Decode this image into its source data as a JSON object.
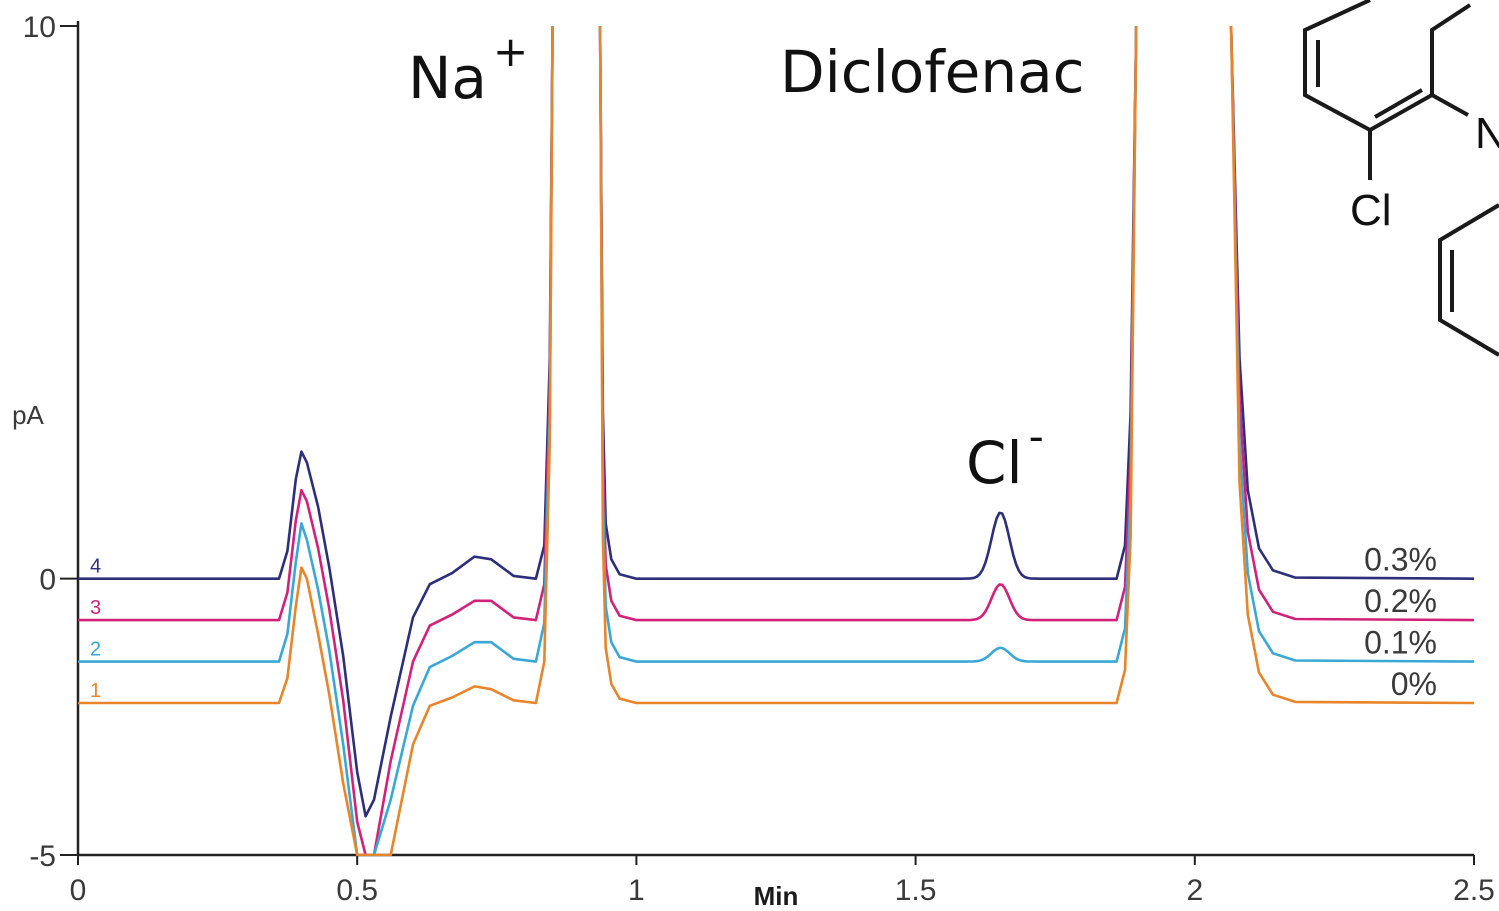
{
  "chart_data": {
    "type": "line",
    "xlabel": "Min",
    "ylabel": "pA",
    "xlim": [
      0,
      2.5
    ],
    "ylim": [
      -5,
      10
    ],
    "x_ticks": [
      "0",
      "0.5",
      "1",
      "1.5",
      "2",
      "2.5"
    ],
    "y_ticks": [
      "10",
      "0",
      "-5"
    ],
    "peak_labels": [
      {
        "text": "Na",
        "sup": "+",
        "x": 0.7
      },
      {
        "text": "Diclofenac",
        "sup": "",
        "x": 1.55
      },
      {
        "text": "Cl",
        "sup": "-",
        "x": 1.65
      }
    ],
    "molecule_fragment": {
      "atom_labels": [
        "Cl",
        "N"
      ]
    },
    "series": [
      {
        "name": "4",
        "label": "0.3%",
        "color": "#2e2f7a",
        "baseline": 0.0,
        "cl_peak": 1.2,
        "points": [
          [
            0,
            0
          ],
          [
            0.36,
            0
          ],
          [
            0.375,
            0.5
          ],
          [
            0.39,
            1.8
          ],
          [
            0.4,
            2.3
          ],
          [
            0.41,
            2.1
          ],
          [
            0.43,
            1.3
          ],
          [
            0.45,
            0.2
          ],
          [
            0.475,
            -1.4
          ],
          [
            0.5,
            -3.5
          ],
          [
            0.515,
            -4.3
          ],
          [
            0.53,
            -4.0
          ],
          [
            0.56,
            -2.5
          ],
          [
            0.6,
            -0.7
          ],
          [
            0.63,
            -0.1
          ],
          [
            0.67,
            0.1
          ],
          [
            0.71,
            0.4
          ],
          [
            0.74,
            0.35
          ],
          [
            0.78,
            0.05
          ],
          [
            0.82,
            0
          ],
          [
            0.835,
            0.6
          ],
          [
            0.845,
            4
          ],
          [
            0.85,
            10
          ]
        ]
      },
      {
        "name": "3",
        "label": "0.2%",
        "color": "#d1227a",
        "baseline": -0.75,
        "cl_peak": 0.65,
        "points": [
          [
            0,
            -0.75
          ],
          [
            0.36,
            -0.75
          ],
          [
            0.375,
            -0.25
          ],
          [
            0.39,
            1.05
          ],
          [
            0.4,
            1.6
          ],
          [
            0.41,
            1.4
          ],
          [
            0.43,
            0.55
          ],
          [
            0.45,
            -0.55
          ],
          [
            0.475,
            -2.2
          ],
          [
            0.5,
            -4.4
          ],
          [
            0.515,
            -5
          ],
          [
            0.53,
            -5
          ],
          [
            0.56,
            -3.3
          ],
          [
            0.6,
            -1.5
          ],
          [
            0.63,
            -0.85
          ],
          [
            0.67,
            -0.65
          ],
          [
            0.71,
            -0.4
          ],
          [
            0.74,
            -0.4
          ],
          [
            0.78,
            -0.7
          ],
          [
            0.82,
            -0.75
          ],
          [
            0.835,
            -0.1
          ],
          [
            0.845,
            3.5
          ],
          [
            0.85,
            10
          ]
        ]
      },
      {
        "name": "2",
        "label": "0.1%",
        "color": "#3aa8d4",
        "baseline": -1.5,
        "cl_peak": 0.25,
        "points": [
          [
            0,
            -1.5
          ],
          [
            0.36,
            -1.5
          ],
          [
            0.375,
            -1.0
          ],
          [
            0.39,
            0.3
          ],
          [
            0.4,
            1.0
          ],
          [
            0.41,
            0.7
          ],
          [
            0.43,
            -0.2
          ],
          [
            0.45,
            -1.3
          ],
          [
            0.475,
            -3.0
          ],
          [
            0.5,
            -5
          ],
          [
            0.53,
            -5
          ],
          [
            0.56,
            -4.0
          ],
          [
            0.6,
            -2.3
          ],
          [
            0.63,
            -1.6
          ],
          [
            0.67,
            -1.4
          ],
          [
            0.71,
            -1.15
          ],
          [
            0.74,
            -1.15
          ],
          [
            0.78,
            -1.45
          ],
          [
            0.82,
            -1.5
          ],
          [
            0.835,
            -0.8
          ],
          [
            0.845,
            3
          ],
          [
            0.85,
            10
          ]
        ]
      },
      {
        "name": "1",
        "label": "0%",
        "color": "#e8852b",
        "baseline": -2.25,
        "cl_peak": 0.0,
        "points": [
          [
            0,
            -2.25
          ],
          [
            0.36,
            -2.25
          ],
          [
            0.375,
            -1.8
          ],
          [
            0.39,
            -0.5
          ],
          [
            0.4,
            0.2
          ],
          [
            0.41,
            0.0
          ],
          [
            0.43,
            -1.0
          ],
          [
            0.45,
            -2.1
          ],
          [
            0.475,
            -3.7
          ],
          [
            0.5,
            -5
          ],
          [
            0.56,
            -5
          ],
          [
            0.6,
            -3.0
          ],
          [
            0.63,
            -2.3
          ],
          [
            0.67,
            -2.15
          ],
          [
            0.71,
            -1.95
          ],
          [
            0.74,
            -2.0
          ],
          [
            0.78,
            -2.2
          ],
          [
            0.82,
            -2.25
          ],
          [
            0.835,
            -1.5
          ],
          [
            0.845,
            2.5
          ],
          [
            0.85,
            10
          ]
        ]
      }
    ]
  }
}
